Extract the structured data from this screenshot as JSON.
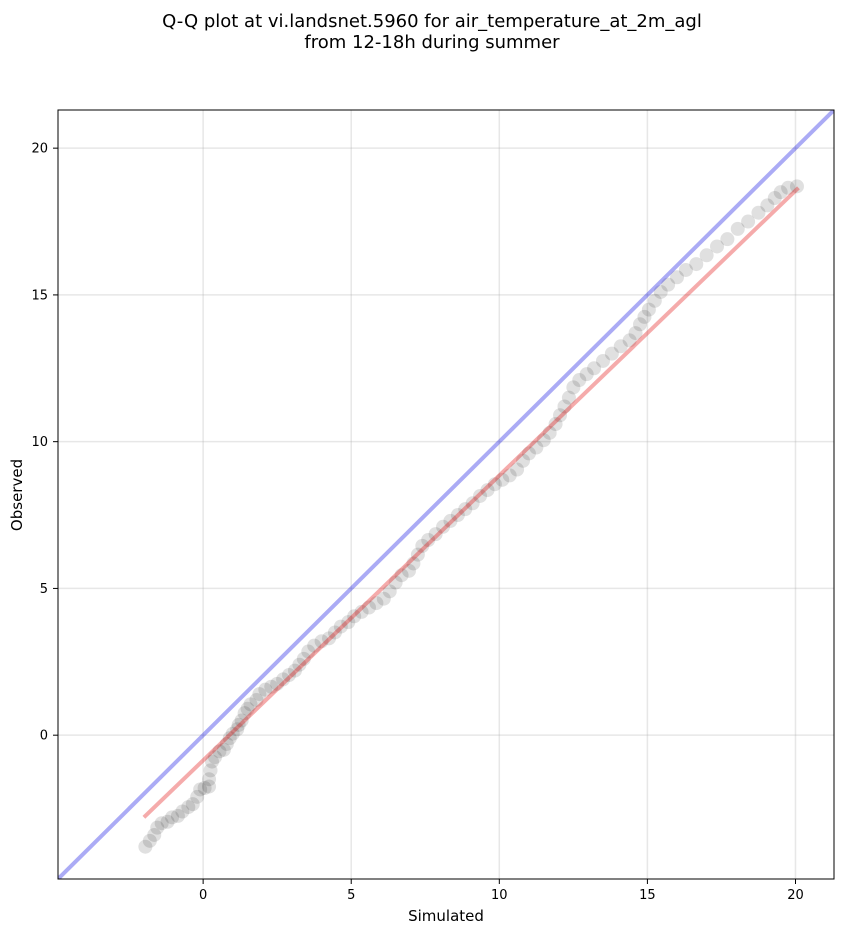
{
  "chart_data": {
    "type": "scatter",
    "title": "Q-Q plot at vi.landsnet.5960 for air_temperature_at_2m_agl",
    "subtitle": "from 12-18h during summer",
    "xlabel": "Simulated",
    "ylabel": "Observed",
    "xlim": [
      -4.9,
      21.3
    ],
    "ylim": [
      -4.9,
      21.3
    ],
    "xticks": [
      0,
      5,
      10,
      15,
      20
    ],
    "yticks": [
      0,
      5,
      10,
      15,
      20
    ],
    "grid": true,
    "series": [
      {
        "kind": "quantile-points",
        "color": "#000000",
        "opacity": 0.12,
        "points": [
          [
            -1.95,
            -3.8
          ],
          [
            -1.8,
            -3.6
          ],
          [
            -1.65,
            -3.4
          ],
          [
            -1.55,
            -3.15
          ],
          [
            -1.4,
            -3.0
          ],
          [
            -1.2,
            -2.95
          ],
          [
            -1.05,
            -2.8
          ],
          [
            -0.85,
            -2.75
          ],
          [
            -0.7,
            -2.6
          ],
          [
            -0.5,
            -2.45
          ],
          [
            -0.35,
            -2.35
          ],
          [
            -0.2,
            -2.1
          ],
          [
            -0.1,
            -1.85
          ],
          [
            0.05,
            -1.8
          ],
          [
            0.2,
            -1.75
          ],
          [
            0.2,
            -1.5
          ],
          [
            0.25,
            -1.2
          ],
          [
            0.3,
            -0.9
          ],
          [
            0.4,
            -0.75
          ],
          [
            0.55,
            -0.55
          ],
          [
            0.7,
            -0.5
          ],
          [
            0.8,
            -0.3
          ],
          [
            0.9,
            -0.1
          ],
          [
            1.0,
            0.05
          ],
          [
            1.15,
            0.2
          ],
          [
            1.2,
            0.35
          ],
          [
            1.3,
            0.5
          ],
          [
            1.4,
            0.75
          ],
          [
            1.5,
            0.9
          ],
          [
            1.6,
            1.05
          ],
          [
            1.8,
            1.2
          ],
          [
            1.9,
            1.4
          ],
          [
            2.1,
            1.55
          ],
          [
            2.3,
            1.65
          ],
          [
            2.5,
            1.75
          ],
          [
            2.7,
            1.9
          ],
          [
            2.9,
            2.05
          ],
          [
            3.1,
            2.2
          ],
          [
            3.25,
            2.4
          ],
          [
            3.4,
            2.6
          ],
          [
            3.55,
            2.85
          ],
          [
            3.75,
            3.05
          ],
          [
            4.0,
            3.2
          ],
          [
            4.25,
            3.3
          ],
          [
            4.45,
            3.5
          ],
          [
            4.65,
            3.7
          ],
          [
            4.9,
            3.85
          ],
          [
            5.1,
            4.05
          ],
          [
            5.35,
            4.2
          ],
          [
            5.6,
            4.35
          ],
          [
            5.85,
            4.5
          ],
          [
            6.1,
            4.65
          ],
          [
            6.3,
            4.9
          ],
          [
            6.5,
            5.2
          ],
          [
            6.7,
            5.45
          ],
          [
            6.95,
            5.6
          ],
          [
            7.1,
            5.85
          ],
          [
            7.25,
            6.15
          ],
          [
            7.4,
            6.45
          ],
          [
            7.6,
            6.65
          ],
          [
            7.85,
            6.85
          ],
          [
            8.1,
            7.1
          ],
          [
            8.35,
            7.3
          ],
          [
            8.6,
            7.5
          ],
          [
            8.85,
            7.7
          ],
          [
            9.1,
            7.9
          ],
          [
            9.35,
            8.15
          ],
          [
            9.6,
            8.35
          ],
          [
            9.85,
            8.55
          ],
          [
            10.1,
            8.7
          ],
          [
            10.35,
            8.85
          ],
          [
            10.6,
            9.05
          ],
          [
            10.8,
            9.35
          ],
          [
            11.0,
            9.6
          ],
          [
            11.25,
            9.8
          ],
          [
            11.5,
            10.05
          ],
          [
            11.7,
            10.3
          ],
          [
            11.9,
            10.6
          ],
          [
            12.05,
            10.9
          ],
          [
            12.2,
            11.2
          ],
          [
            12.35,
            11.5
          ],
          [
            12.5,
            11.85
          ],
          [
            12.7,
            12.1
          ],
          [
            12.95,
            12.3
          ],
          [
            13.2,
            12.5
          ],
          [
            13.5,
            12.75
          ],
          [
            13.8,
            13.0
          ],
          [
            14.1,
            13.25
          ],
          [
            14.4,
            13.45
          ],
          [
            14.6,
            13.7
          ],
          [
            14.75,
            14.0
          ],
          [
            14.9,
            14.25
          ],
          [
            15.05,
            14.5
          ],
          [
            15.25,
            14.8
          ],
          [
            15.45,
            15.1
          ],
          [
            15.7,
            15.35
          ],
          [
            16.0,
            15.6
          ],
          [
            16.3,
            15.85
          ],
          [
            16.65,
            16.05
          ],
          [
            17.0,
            16.35
          ],
          [
            17.35,
            16.65
          ],
          [
            17.7,
            16.9
          ],
          [
            18.05,
            17.25
          ],
          [
            18.4,
            17.5
          ],
          [
            18.75,
            17.8
          ],
          [
            19.05,
            18.05
          ],
          [
            19.3,
            18.3
          ],
          [
            19.5,
            18.5
          ],
          [
            19.75,
            18.65
          ],
          [
            20.05,
            18.7
          ]
        ]
      },
      {
        "kind": "identity-line",
        "color": "#0000e0",
        "opacity": 0.33,
        "x": [
          -4.9,
          21.3
        ],
        "y": [
          -4.9,
          21.3
        ]
      },
      {
        "kind": "fit-line",
        "color": "#e00000",
        "opacity": 0.33,
        "x": [
          -2.0,
          20.1
        ],
        "y": [
          -2.8,
          18.65
        ]
      }
    ]
  }
}
